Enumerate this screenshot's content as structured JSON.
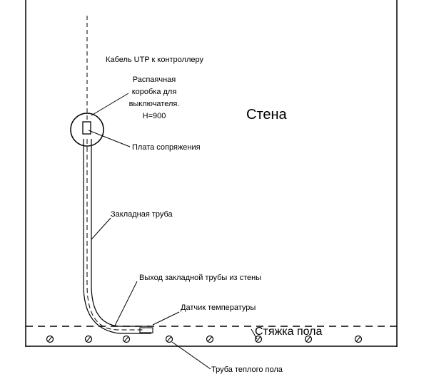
{
  "labels": {
    "wall": "Стена",
    "cable": "Кабель UTP к контроллеру",
    "junction_box": [
      "Распаячная",
      "коробка для",
      "выключателя.",
      "H=900"
    ],
    "interface_board": "Плата сопряжения",
    "embedded_pipe": "Закладная труба",
    "pipe_exit": "Выход закладной трубы из стены",
    "temp_sensor": "Датчик температуры",
    "floor_screed": "Стяжка пола",
    "floor_heating_pipe": "Труба теплого пола"
  },
  "colors": {
    "line": "#000000",
    "background": "#ffffff"
  }
}
